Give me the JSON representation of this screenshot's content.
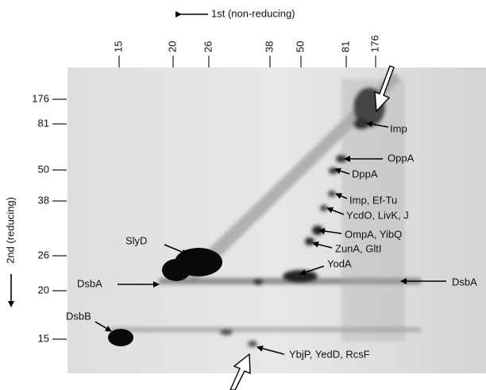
{
  "top_axis": {
    "title": "1st (non-reducing)",
    "markers": [
      "15",
      "20",
      "26",
      "38",
      "50",
      "81",
      "176"
    ]
  },
  "left_axis": {
    "title": "2nd (reducing)",
    "markers": [
      "176",
      "81",
      "50",
      "38",
      "26",
      "20",
      "15"
    ]
  },
  "proteins": [
    "SlyD",
    "DsbA",
    "DsbB",
    "Imp",
    "OppA",
    "DppA",
    "Imp, Ef-Tu",
    "YcdO, LivK, J",
    "OmpA, YibQ",
    "ZunA, GltI",
    "YodA",
    "DsbA",
    "YbjP, YedD, RcsF"
  ]
}
